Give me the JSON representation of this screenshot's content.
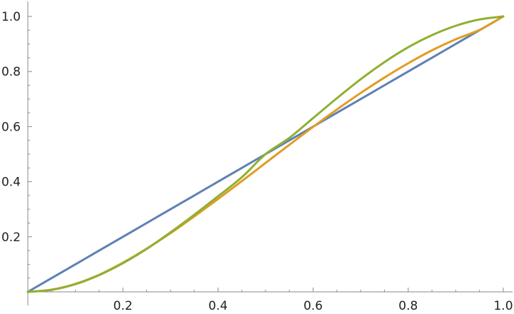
{
  "chart_data": {
    "type": "line",
    "title": "",
    "xlabel": "",
    "ylabel": "",
    "xlim": [
      0,
      1
    ],
    "ylim": [
      0,
      1
    ],
    "grid": false,
    "x_ticks": [
      {
        "value": 0.2,
        "label": "0.2"
      },
      {
        "value": 0.4,
        "label": "0.4"
      },
      {
        "value": 0.6,
        "label": "0.6"
      },
      {
        "value": 0.8,
        "label": "0.8"
      },
      {
        "value": 1.0,
        "label": "1.0"
      }
    ],
    "y_ticks": [
      {
        "value": 0.2,
        "label": "0.2"
      },
      {
        "value": 0.4,
        "label": "0.4"
      },
      {
        "value": 0.6,
        "label": "0.6"
      },
      {
        "value": 0.8,
        "label": "0.8"
      },
      {
        "value": 1.0,
        "label": "1.0"
      }
    ],
    "x": [
      0,
      0.05,
      0.1,
      0.15,
      0.2,
      0.25,
      0.3,
      0.35,
      0.4,
      0.45,
      0.5,
      0.55,
      0.6,
      0.65,
      0.7,
      0.75,
      0.8,
      0.85,
      0.9,
      0.95,
      1.0
    ],
    "series": [
      {
        "color": "#5e81b5",
        "values": [
          0,
          0.05,
          0.1,
          0.15,
          0.2,
          0.25,
          0.3,
          0.35,
          0.4,
          0.45,
          0.5,
          0.55,
          0.6,
          0.65,
          0.7,
          0.75,
          0.8,
          0.85,
          0.9,
          0.95,
          1.0
        ]
      },
      {
        "color": "#e19c24",
        "values": [
          0,
          0.008,
          0.029,
          0.062,
          0.106,
          0.157,
          0.213,
          0.274,
          0.337,
          0.402,
          0.468,
          0.534,
          0.599,
          0.662,
          0.722,
          0.778,
          0.83,
          0.877,
          0.917,
          0.951,
          1.0
        ]
      },
      {
        "color": "#8fb032",
        "values": [
          0,
          0.0073,
          0.028,
          0.061,
          0.104,
          0.156,
          0.216,
          0.28,
          0.347,
          0.416,
          0.5,
          0.559,
          0.631,
          0.703,
          0.772,
          0.834,
          0.888,
          0.932,
          0.966,
          0.989,
          1.0
        ]
      }
    ]
  }
}
